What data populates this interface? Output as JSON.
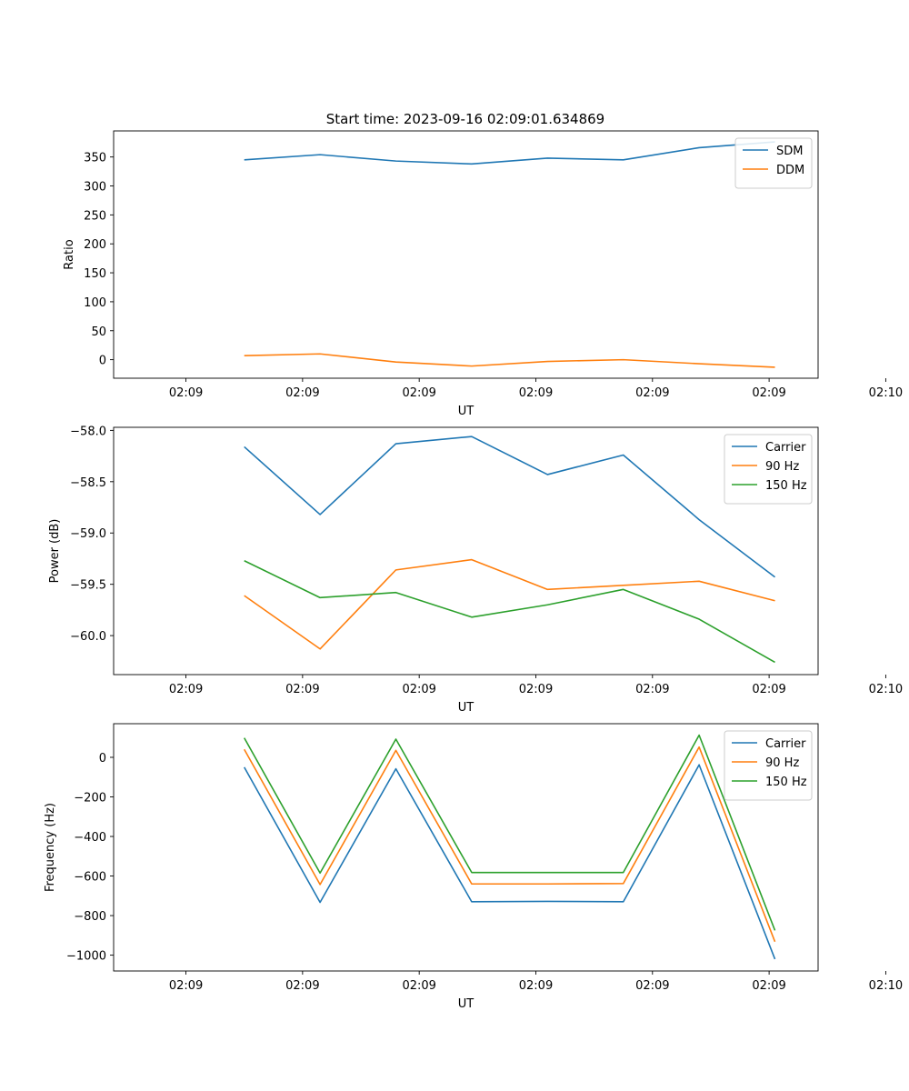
{
  "figure": {
    "title": "Start time: 2023-09-16 02:09:01.634869"
  },
  "chart_data": [
    {
      "type": "line",
      "xlabel": "UT",
      "ylabel": "Ratio",
      "x_tick_labels": [
        "02:09",
        "02:09",
        "02:09",
        "02:09",
        "02:09",
        "02:09",
        "02:10"
      ],
      "xlim": [
        -0.62,
        5.42
      ],
      "ylim": [
        -32,
        395
      ],
      "yticks": [
        0,
        50,
        100,
        150,
        200,
        250,
        300,
        350
      ],
      "y_tick_labels": [
        "0",
        "50",
        "100",
        "150",
        "200",
        "250",
        "300",
        "350"
      ],
      "x": [
        0.5,
        1.15,
        1.8,
        2.45,
        3.1,
        3.75,
        4.4,
        5.05
      ],
      "legend_position": "upper-right",
      "series": [
        {
          "name": "SDM",
          "color": "#1f77b4",
          "values": [
            345,
            354,
            343,
            338,
            348,
            345,
            366,
            376
          ]
        },
        {
          "name": "DDM",
          "color": "#ff7f0e",
          "values": [
            7,
            10,
            -4,
            -11,
            -3,
            0,
            -7,
            -13
          ]
        }
      ]
    },
    {
      "type": "line",
      "xlabel": "UT",
      "ylabel": "Power (dB)",
      "x_tick_labels": [
        "02:09",
        "02:09",
        "02:09",
        "02:09",
        "02:09",
        "02:09",
        "02:10"
      ],
      "xlim": [
        -0.62,
        5.42
      ],
      "ylim": [
        -60.38,
        -57.97
      ],
      "yticks": [
        -60.0,
        -59.5,
        -59.0,
        -58.5,
        -58.0
      ],
      "y_tick_labels": [
        "−60.0",
        "−59.5",
        "−59.0",
        "−58.5",
        "−58.0"
      ],
      "x": [
        0.5,
        1.15,
        1.8,
        2.45,
        3.1,
        3.75,
        4.4,
        5.05
      ],
      "legend_position": "upper-right",
      "series": [
        {
          "name": "Carrier",
          "color": "#1f77b4",
          "values": [
            -58.16,
            -58.82,
            -58.13,
            -58.06,
            -58.43,
            -58.24,
            -58.87,
            -59.43
          ]
        },
        {
          "name": "90 Hz",
          "color": "#ff7f0e",
          "values": [
            -59.61,
            -60.13,
            -59.36,
            -59.26,
            -59.55,
            -59.51,
            -59.47,
            -59.66
          ]
        },
        {
          "name": "150 Hz",
          "color": "#2ca02c",
          "values": [
            -59.27,
            -59.63,
            -59.58,
            -59.82,
            -59.7,
            -59.55,
            -59.84,
            -60.26
          ]
        }
      ]
    },
    {
      "type": "line",
      "xlabel": "UT",
      "ylabel": "Frequency (Hz)",
      "x_tick_labels": [
        "02:09",
        "02:09",
        "02:09",
        "02:09",
        "02:09",
        "02:09",
        "02:10"
      ],
      "xlim": [
        -0.62,
        5.42
      ],
      "ylim": [
        -1080,
        170
      ],
      "yticks": [
        -1000,
        -800,
        -600,
        -400,
        -200,
        0
      ],
      "y_tick_labels": [
        "−1000",
        "−800",
        "−600",
        "−400",
        "−200",
        "0"
      ],
      "x": [
        0.5,
        1.15,
        1.8,
        2.45,
        3.1,
        3.75,
        4.4,
        5.05
      ],
      "legend_position": "upper-right",
      "series": [
        {
          "name": "Carrier",
          "color": "#1f77b4",
          "values": [
            -50,
            -733,
            -58,
            -730,
            -728,
            -730,
            -38,
            -1020
          ]
        },
        {
          "name": "90 Hz",
          "color": "#ff7f0e",
          "values": [
            40,
            -643,
            35,
            -640,
            -640,
            -638,
            52,
            -932
          ]
        },
        {
          "name": "150 Hz",
          "color": "#2ca02c",
          "values": [
            98,
            -585,
            92,
            -582,
            -582,
            -582,
            112,
            -875
          ]
        }
      ]
    }
  ]
}
